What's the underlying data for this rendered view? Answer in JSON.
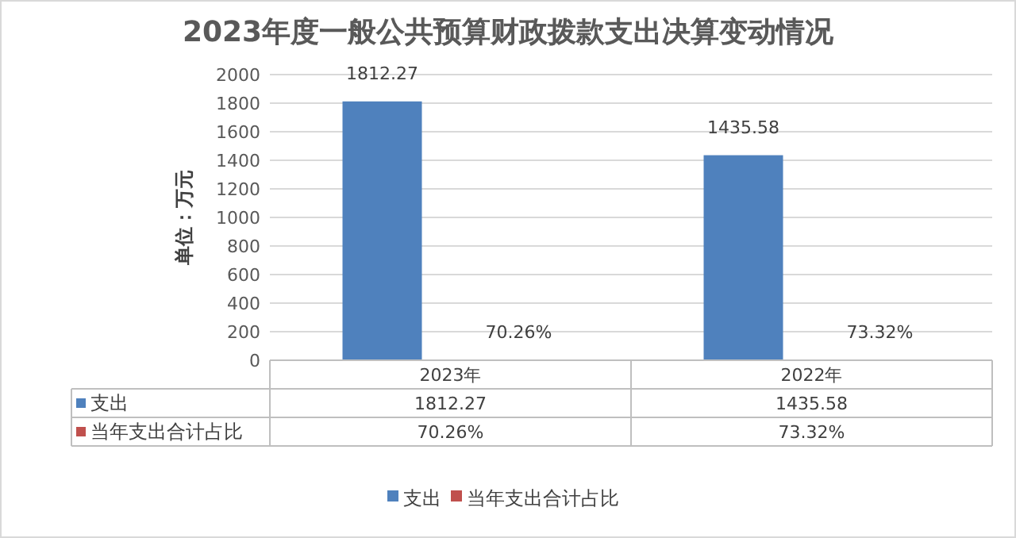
{
  "chart_data": {
    "type": "bar",
    "title": "2023年度一般公共预算财政拨款支出决算变动情况",
    "ylabel": "单位：万元",
    "categories": [
      "2023年",
      "2022年"
    ],
    "series": [
      {
        "name": "支出",
        "color": "#4f81bd",
        "values": [
          1812.27,
          1435.58
        ],
        "value_labels": [
          "1812.27",
          "1435.58"
        ]
      },
      {
        "name": "当年支出合计占比",
        "color": "#c0504d",
        "values": [
          0.7026,
          0.7332
        ],
        "value_labels": [
          "70.26%",
          "73.32%"
        ]
      }
    ],
    "ylim": [
      0,
      2000
    ],
    "yticks": [
      0,
      200,
      400,
      600,
      800,
      1000,
      1200,
      1400,
      1600,
      1800,
      2000
    ],
    "grid": "y",
    "legend": "bottom"
  }
}
